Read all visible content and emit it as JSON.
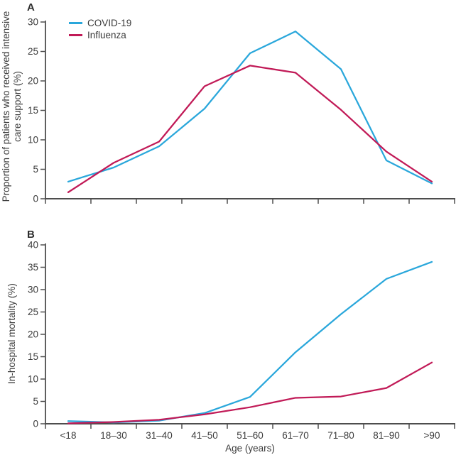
{
  "figure_colors": {
    "covid": "#2aa7db",
    "influenza": "#c11a57",
    "axis": "#4d4d4d",
    "text": "#3b3b3b"
  },
  "chart_data": [
    {
      "type": "line",
      "panel": "A",
      "ylabel": "Proportion of patients who received intensive care support (%)",
      "ylabel_lines": [
        "Proportion of patients who received intensive",
        "care support (%)"
      ],
      "xlabel": "",
      "ylim": [
        0,
        30
      ],
      "yticks": [
        0,
        5,
        10,
        15,
        20,
        25,
        30
      ],
      "grid": false,
      "legend_position": "top-left",
      "categories": [
        "<18",
        "18–30",
        "31–40",
        "41–50",
        "51–60",
        "61–70",
        "71–80",
        "81–90",
        ">90"
      ],
      "series": [
        {
          "name": "COVID-19",
          "color": "#2aa7db",
          "values": [
            2.9,
            5.3,
            8.9,
            15.3,
            24.7,
            28.4,
            22.0,
            6.5,
            2.6
          ]
        },
        {
          "name": "Influenza",
          "color": "#c11a57",
          "values": [
            1.1,
            6.1,
            9.7,
            19.1,
            22.6,
            21.4,
            15.1,
            8.0,
            2.9
          ]
        }
      ]
    },
    {
      "type": "line",
      "panel": "B",
      "ylabel": "In-hospital mortality (%)",
      "ylabel_lines": [
        "In-hospital mortality (%)"
      ],
      "xlabel": "Age (years)",
      "ylim": [
        0,
        40
      ],
      "yticks": [
        0,
        5,
        10,
        15,
        20,
        25,
        30,
        35,
        40
      ],
      "grid": false,
      "legend_position": "none",
      "categories": [
        "<18",
        "18–30",
        "31–40",
        "41–50",
        "51–60",
        "61–70",
        "71–80",
        "81–90",
        ">90"
      ],
      "series": [
        {
          "name": "COVID-19",
          "color": "#2aa7db",
          "values": [
            0.6,
            0.3,
            0.7,
            2.4,
            6.0,
            16.0,
            24.5,
            32.4,
            36.2
          ]
        },
        {
          "name": "Influenza",
          "color": "#c11a57",
          "values": [
            0.1,
            0.4,
            0.9,
            2.1,
            3.7,
            5.8,
            6.1,
            8.0,
            13.7
          ]
        }
      ]
    }
  ]
}
